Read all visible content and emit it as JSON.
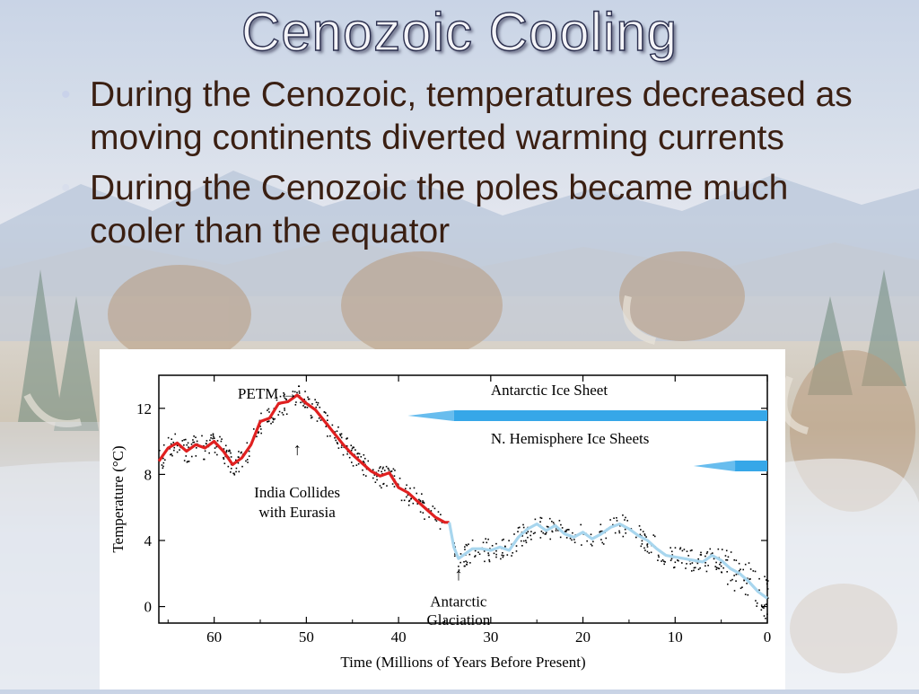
{
  "slide": {
    "title": "Cenozoic Cooling",
    "bullets": [
      "During the Cenozoic, temperatures decreased as moving continents diverted warming currents",
      "During the Cenozoic the poles became much cooler than the equator"
    ]
  },
  "chart_data": {
    "type": "line",
    "xlabel": "Time (Millions of Years Before Present)",
    "ylabel": "Temperature (°C)",
    "xlim": [
      66,
      0
    ],
    "ylim": [
      -1,
      14
    ],
    "x_ticks": [
      60,
      50,
      40,
      30,
      20,
      10,
      0
    ],
    "y_ticks": [
      0,
      4,
      8,
      12
    ],
    "series": [
      {
        "segment": "red",
        "color": "#e02020",
        "points": [
          [
            66,
            8.8
          ],
          [
            65,
            9.6
          ],
          [
            64,
            9.9
          ],
          [
            63,
            9.4
          ],
          [
            62,
            9.8
          ],
          [
            61,
            9.6
          ],
          [
            60,
            10
          ],
          [
            59,
            9.4
          ],
          [
            58,
            8.6
          ],
          [
            57,
            9
          ],
          [
            56,
            9.8
          ],
          [
            55,
            11.2
          ],
          [
            54,
            11.4
          ],
          [
            53,
            12.3
          ],
          [
            52,
            12.4
          ],
          [
            51,
            12.8
          ],
          [
            50,
            12.3
          ],
          [
            49,
            11.9
          ],
          [
            48,
            11.2
          ],
          [
            47,
            10.5
          ],
          [
            46,
            9.8
          ],
          [
            45,
            9.2
          ],
          [
            44,
            8.7
          ],
          [
            43,
            8.2
          ],
          [
            42,
            7.9
          ],
          [
            41,
            8.1
          ],
          [
            40,
            7.2
          ],
          [
            39,
            6.9
          ],
          [
            38,
            6.4
          ],
          [
            37,
            5.9
          ],
          [
            36,
            5.4
          ],
          [
            35,
            5.1
          ],
          [
            34.5,
            5.1
          ]
        ]
      },
      {
        "segment": "blue",
        "color": "#a8d6ee",
        "points": [
          [
            34.5,
            5.1
          ],
          [
            34,
            3.6
          ],
          [
            33.5,
            2.9
          ],
          [
            33,
            3.1
          ],
          [
            32,
            3.5
          ],
          [
            31,
            3.5
          ],
          [
            30,
            3.4
          ],
          [
            29,
            3.6
          ],
          [
            28,
            3.4
          ],
          [
            27,
            4.2
          ],
          [
            26,
            4.7
          ],
          [
            25,
            5
          ],
          [
            24,
            4.6
          ],
          [
            23,
            4.9
          ],
          [
            22,
            4.4
          ],
          [
            21,
            4.2
          ],
          [
            20,
            4.5
          ],
          [
            19,
            4.1
          ],
          [
            18,
            4.4
          ],
          [
            17,
            4.8
          ],
          [
            16,
            5
          ],
          [
            15,
            4.7
          ],
          [
            14,
            4.3
          ],
          [
            13,
            4
          ],
          [
            12,
            3.5
          ],
          [
            11,
            3.1
          ],
          [
            10,
            3
          ],
          [
            9,
            2.9
          ],
          [
            8,
            2.8
          ],
          [
            7,
            2.7
          ],
          [
            6,
            3.1
          ],
          [
            5,
            2.8
          ],
          [
            4,
            2.3
          ],
          [
            3,
            2
          ],
          [
            2,
            1.5
          ],
          [
            1,
            0.9
          ],
          [
            0,
            0.5
          ]
        ]
      }
    ],
    "annotations": [
      {
        "text": "PETM →",
        "x": 55.5,
        "y": 12.6
      },
      {
        "text": "↑",
        "x": 51,
        "y": 9.2
      },
      {
        "text": "India Collides",
        "x": 51,
        "y": 6.6
      },
      {
        "text": "with Eurasia",
        "x": 51,
        "y": 5.4
      },
      {
        "text": "↑",
        "x": 33.5,
        "y": 1.6
      },
      {
        "text": "Antarctic",
        "x": 33.5,
        "y": 0.0
      },
      {
        "text": "Glaciation",
        "x": 33.5,
        "y": -1.1
      }
    ],
    "ice_sheets": [
      {
        "label": "Antarctic Ice Sheet",
        "from": 39,
        "to": 0,
        "solid_from": 34,
        "color": "#36a7e8"
      },
      {
        "label": "N. Hemisphere Ice Sheets",
        "from": 8,
        "to": 0,
        "solid_from": 3.5,
        "color": "#36a7e8"
      }
    ]
  }
}
